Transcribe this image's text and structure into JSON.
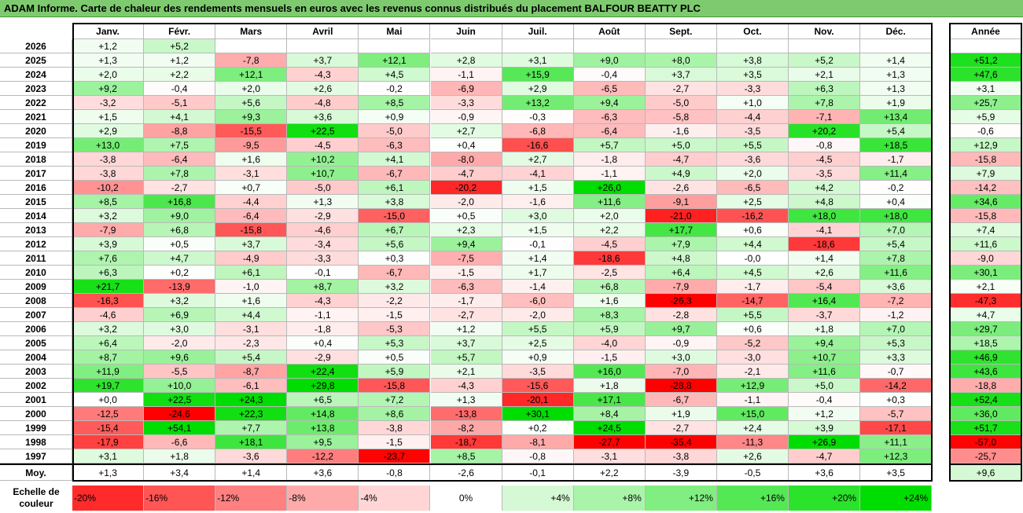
{
  "title": "ADAM Informe. Carte de chaleur des rendements mensuels en euros avec les revenus connus distribués du placement BALFOUR BEATTY PLC",
  "colors": {
    "title_bar": "#7ecb6f",
    "positive_max": "#00dd00",
    "negative_max": "#ff0000",
    "neutral": "#ffffff"
  },
  "chart_data": {
    "type": "heatmap",
    "title": "ADAM Informe. Carte de chaleur des rendements mensuels en euros avec les revenus connus distribués du placement BALFOUR BEATTY PLC",
    "columns": [
      "Janv.",
      "Févr.",
      "Mars",
      "Avril",
      "Mai",
      "Juin",
      "Juil.",
      "Août",
      "Sept.",
      "Oct.",
      "Nov.",
      "Déc."
    ],
    "year_column": "Année",
    "rows": [
      {
        "year": "2026",
        "months": [
          "+1,2",
          "+5,2",
          "",
          "",
          "",
          "",
          "",
          "",
          "",
          "",
          "",
          ""
        ],
        "annual": ""
      },
      {
        "year": "2025",
        "months": [
          "+1,3",
          "+1,2",
          "-7,8",
          "+3,7",
          "+12,1",
          "+2,8",
          "+3,1",
          "+9,0",
          "+8,0",
          "+3,8",
          "+5,2",
          "+1,4"
        ],
        "annual": "+51,2"
      },
      {
        "year": "2024",
        "months": [
          "+2,0",
          "+2,2",
          "+12,1",
          "-4,3",
          "+4,5",
          "-1,1",
          "+15,9",
          "-0,4",
          "+3,7",
          "+3,5",
          "+2,1",
          "+1,3"
        ],
        "annual": "+47,6"
      },
      {
        "year": "2023",
        "months": [
          "+9,2",
          "-0,4",
          "+2,0",
          "+2,6",
          "-0,2",
          "-6,9",
          "+2,9",
          "-6,5",
          "-2,7",
          "-3,3",
          "+6,3",
          "+1,3"
        ],
        "annual": "+3,1"
      },
      {
        "year": "2022",
        "months": [
          "-3,2",
          "-5,1",
          "+5,6",
          "-4,8",
          "+8,5",
          "-3,3",
          "+13,2",
          "+9,4",
          "-5,0",
          "+1,0",
          "+7,8",
          "+1,9"
        ],
        "annual": "+25,7"
      },
      {
        "year": "2021",
        "months": [
          "+1,5",
          "+4,1",
          "+9,3",
          "+3,6",
          "+0,9",
          "-0,9",
          "-0,3",
          "-6,3",
          "-5,8",
          "-4,4",
          "-7,1",
          "+13,4"
        ],
        "annual": "+5,9"
      },
      {
        "year": "2020",
        "months": [
          "+2,9",
          "-8,8",
          "-15,5",
          "+22,5",
          "-5,0",
          "+2,7",
          "-6,8",
          "-6,4",
          "-1,6",
          "-3,5",
          "+20,2",
          "+5,4"
        ],
        "annual": "-0,6"
      },
      {
        "year": "2019",
        "months": [
          "+13,0",
          "+7,5",
          "-9,5",
          "-4,5",
          "-6,3",
          "+0,4",
          "-16,6",
          "+5,7",
          "+5,0",
          "+5,5",
          "-0,8",
          "+18,5"
        ],
        "annual": "+12,9"
      },
      {
        "year": "2018",
        "months": [
          "-3,8",
          "-6,4",
          "+1,6",
          "+10,2",
          "+4,1",
          "-8,0",
          "+2,7",
          "-1,8",
          "-4,7",
          "-3,6",
          "-4,5",
          "-1,7"
        ],
        "annual": "-15,8"
      },
      {
        "year": "2017",
        "months": [
          "-3,8",
          "+7,8",
          "-3,1",
          "+10,7",
          "-6,7",
          "-4,7",
          "-4,1",
          "-1,1",
          "+4,9",
          "+2,0",
          "-3,5",
          "+11,4"
        ],
        "annual": "+7,9"
      },
      {
        "year": "2016",
        "months": [
          "-10,2",
          "-2,7",
          "+0,7",
          "-5,0",
          "+6,1",
          "-20,2",
          "+1,5",
          "+26,0",
          "-2,6",
          "-6,5",
          "+4,2",
          "-0,2"
        ],
        "annual": "-14,2"
      },
      {
        "year": "2015",
        "months": [
          "+8,5",
          "+16,8",
          "-4,4",
          "+1,3",
          "+3,8",
          "-2,0",
          "-1,6",
          "+11,6",
          "-9,1",
          "+2,5",
          "+4,8",
          "+0,4"
        ],
        "annual": "+34,6"
      },
      {
        "year": "2014",
        "months": [
          "+3,2",
          "+9,0",
          "-6,4",
          "-2,9",
          "-15,0",
          "+0,5",
          "+3,0",
          "+2,0",
          "-21,0",
          "-16,2",
          "+18,0",
          "+18,0"
        ],
        "annual": "-15,8"
      },
      {
        "year": "2013",
        "months": [
          "-7,9",
          "+6,8",
          "-15,8",
          "-4,6",
          "+6,7",
          "+2,3",
          "+1,5",
          "+2,2",
          "+17,7",
          "+0,6",
          "-4,1",
          "+7,0"
        ],
        "annual": "+7,4"
      },
      {
        "year": "2012",
        "months": [
          "+3,9",
          "+0,5",
          "+3,7",
          "-3,4",
          "+5,6",
          "+9,4",
          "-0,1",
          "-4,5",
          "+7,9",
          "+4,4",
          "-18,6",
          "+5,4"
        ],
        "annual": "+11,6"
      },
      {
        "year": "2011",
        "months": [
          "+7,6",
          "+4,7",
          "-4,9",
          "-3,3",
          "+0,3",
          "-7,5",
          "+1,4",
          "-18,6",
          "+4,8",
          "-0,0",
          "+1,4",
          "+7,8"
        ],
        "annual": "-9,0"
      },
      {
        "year": "2010",
        "months": [
          "+6,3",
          "+0,2",
          "+6,1",
          "-0,1",
          "-6,7",
          "-1,5",
          "+1,7",
          "-2,5",
          "+6,4",
          "+4,5",
          "+2,6",
          "+11,6"
        ],
        "annual": "+30,1"
      },
      {
        "year": "2009",
        "months": [
          "+21,7",
          "-13,9",
          "-1,0",
          "+8,7",
          "+3,2",
          "-6,3",
          "-1,4",
          "+6,8",
          "-7,9",
          "-1,7",
          "-5,4",
          "+3,6"
        ],
        "annual": "+2,1"
      },
      {
        "year": "2008",
        "months": [
          "-16,3",
          "+3,2",
          "+1,6",
          "-4,3",
          "-2,2",
          "-1,7",
          "-6,0",
          "+1,6",
          "-26,3",
          "-14,7",
          "+16,4",
          "-7,2"
        ],
        "annual": "-47,3"
      },
      {
        "year": "2007",
        "months": [
          "-4,6",
          "+6,9",
          "+4,4",
          "-1,1",
          "-1,5",
          "-2,7",
          "-2,0",
          "+8,3",
          "-2,8",
          "+5,5",
          "-3,7",
          "-1,2"
        ],
        "annual": "+4,7"
      },
      {
        "year": "2006",
        "months": [
          "+3,2",
          "+3,0",
          "-3,1",
          "-1,8",
          "-5,3",
          "+1,2",
          "+5,5",
          "+5,9",
          "+9,7",
          "+0,6",
          "+1,8",
          "+7,0"
        ],
        "annual": "+29,7"
      },
      {
        "year": "2005",
        "months": [
          "+6,4",
          "-2,0",
          "-2,3",
          "+0,4",
          "+5,3",
          "+3,7",
          "+2,5",
          "-4,0",
          "-0,9",
          "-5,2",
          "+9,4",
          "+5,3"
        ],
        "annual": "+18,5"
      },
      {
        "year": "2004",
        "months": [
          "+8,7",
          "+9,6",
          "+5,4",
          "-2,9",
          "+0,5",
          "+5,7",
          "+0,9",
          "-1,5",
          "+3,0",
          "-3,0",
          "+10,7",
          "+3,3"
        ],
        "annual": "+46,9"
      },
      {
        "year": "2003",
        "months": [
          "+11,9",
          "-5,5",
          "-8,7",
          "+22,4",
          "+5,9",
          "+2,1",
          "-3,5",
          "+16,0",
          "-7,0",
          "-2,1",
          "+11,6",
          "-0,7"
        ],
        "annual": "+43,6"
      },
      {
        "year": "2002",
        "months": [
          "+19,7",
          "+10,0",
          "-6,1",
          "+29,8",
          "-15,8",
          "-4,3",
          "-15,6",
          "+1,8",
          "-28,8",
          "+12,9",
          "+5,0",
          "-14,2"
        ],
        "annual": "-18,8"
      },
      {
        "year": "2001",
        "months": [
          "+0,0",
          "+22,5",
          "+24,3",
          "+6,5",
          "+7,2",
          "+1,3",
          "-20,1",
          "+17,1",
          "-6,7",
          "-1,1",
          "-0,4",
          "+0,3"
        ],
        "annual": "+52,4"
      },
      {
        "year": "2000",
        "months": [
          "-12,5",
          "-24,6",
          "+22,3",
          "+14,8",
          "+8,6",
          "-13,8",
          "+30,1",
          "+8,4",
          "+1,9",
          "+15,0",
          "+1,2",
          "-5,7"
        ],
        "annual": "+36,0"
      },
      {
        "year": "1999",
        "months": [
          "-15,4",
          "+54,1",
          "+7,7",
          "+13,8",
          "-3,8",
          "-8,2",
          "+0,2",
          "+24,5",
          "-2,7",
          "+2,4",
          "+3,9",
          "-17,1"
        ],
        "annual": "+51,7"
      },
      {
        "year": "1998",
        "months": [
          "-17,9",
          "-6,6",
          "+18,1",
          "+9,5",
          "-1,5",
          "-18,7",
          "-8,1",
          "-27,7",
          "-35,4",
          "-11,3",
          "+26,9",
          "+11,1"
        ],
        "annual": "-57,0"
      },
      {
        "year": "1997",
        "months": [
          "+3,1",
          "+1,8",
          "-3,6",
          "-12,2",
          "-23,7",
          "+8,5",
          "-0,8",
          "-3,1",
          "-3,8",
          "+2,6",
          "-4,7",
          "+12,3"
        ],
        "annual": "-25,7"
      }
    ],
    "average": {
      "label": "Moy.",
      "months": [
        "+1,3",
        "+3,4",
        "+1,4",
        "+3,6",
        "-0,8",
        "-2,6",
        "-0,1",
        "+2,2",
        "-3,9",
        "-0,5",
        "+3,6",
        "+3,5"
      ],
      "annual": "+9,6"
    },
    "scale": {
      "label": "Echelle de couleur",
      "steps": [
        "-20%",
        "-16%",
        "-12%",
        "-8%",
        "-4%",
        "0%",
        "+4%",
        "+8%",
        "+12%",
        "+16%",
        "+20%",
        "+24%"
      ],
      "values": [
        -20,
        -16,
        -12,
        -8,
        -4,
        0,
        4,
        8,
        12,
        16,
        20,
        24
      ]
    },
    "color_range": {
      "min": -24,
      "max": 24
    }
  }
}
